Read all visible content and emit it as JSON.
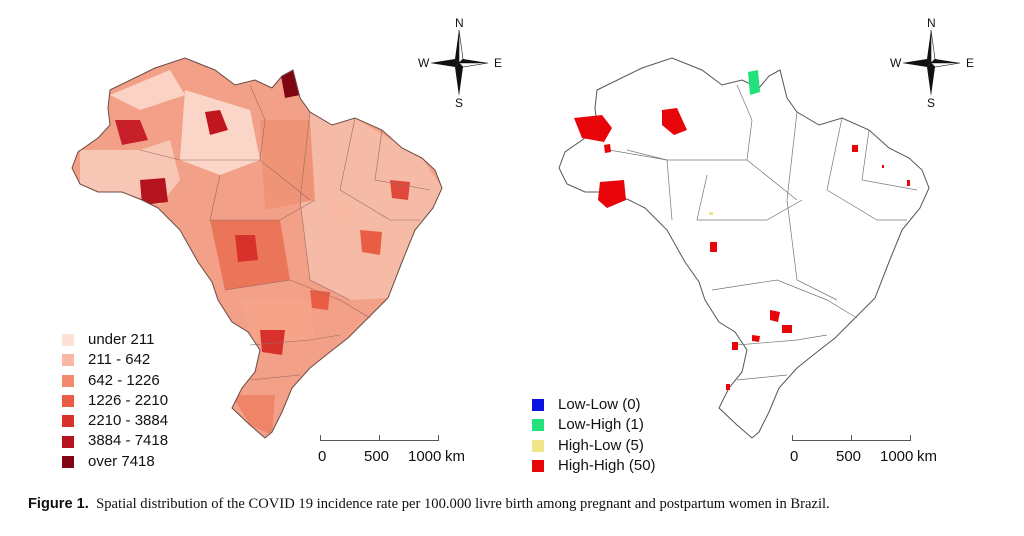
{
  "left_map": {
    "compass": {
      "n": "N",
      "s": "S",
      "e": "E",
      "w": "W"
    },
    "legend": [
      {
        "label": "under 211",
        "color": "#fde0d6"
      },
      {
        "label": "211 - 642",
        "color": "#f9b8a2"
      },
      {
        "label": "642 - 1226",
        "color": "#f18a6c"
      },
      {
        "label": "1226 - 2210",
        "color": "#e85d43"
      },
      {
        "label": "2210 - 3884",
        "color": "#d8312b"
      },
      {
        "label": "3884 - 7418",
        "color": "#b5131e"
      },
      {
        "label": "over 7418",
        "color": "#7f0512"
      }
    ],
    "scale": {
      "ticks": [
        "0",
        "500",
        "1000"
      ],
      "unit": "km"
    }
  },
  "right_map": {
    "compass": {
      "n": "N",
      "s": "S",
      "e": "E",
      "w": "W"
    },
    "legend": [
      {
        "label": "Low-Low (0)",
        "color": "#0a14e0"
      },
      {
        "label": "Low-High (1)",
        "color": "#22e07a"
      },
      {
        "label": "High-Low (5)",
        "color": "#f1e58c"
      },
      {
        "label": "High-High (50)",
        "color": "#e8050a"
      }
    ],
    "scale": {
      "ticks": [
        "0",
        "500",
        "1000"
      ],
      "unit": "km"
    }
  },
  "caption": {
    "label": "Figure 1.",
    "text": "Spatial distribution of the COVID 19 incidence rate per 100.000 livre birth among pregnant and postpartum women in Brazil."
  }
}
